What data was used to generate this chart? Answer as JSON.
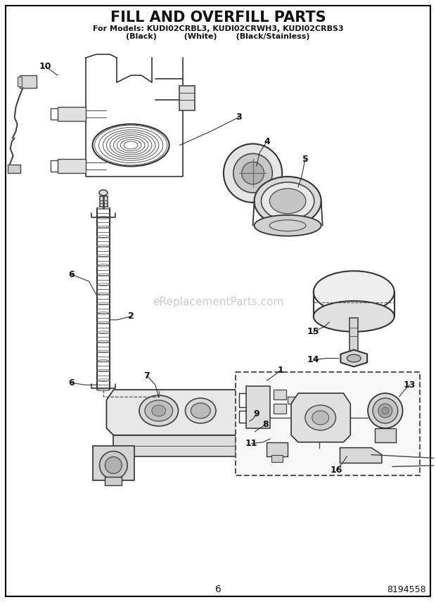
{
  "title": "FILL AND OVERFILL PARTS",
  "subtitle_line1": "For Models: KUDI02CRBL3, KUDI02CRWH3, KUDI02CRBS3",
  "subtitle_line2": "(Black)          (White)       (Black/Stainless)",
  "watermark": "eReplacementParts.com",
  "page_number": "6",
  "part_number": "8194558",
  "bg": "#ffffff",
  "fg": "#222222",
  "light_gray": "#cccccc",
  "mid_gray": "#999999",
  "dark_gray": "#555555",
  "figsize": [
    6.2,
    8.56
  ],
  "dpi": 100
}
